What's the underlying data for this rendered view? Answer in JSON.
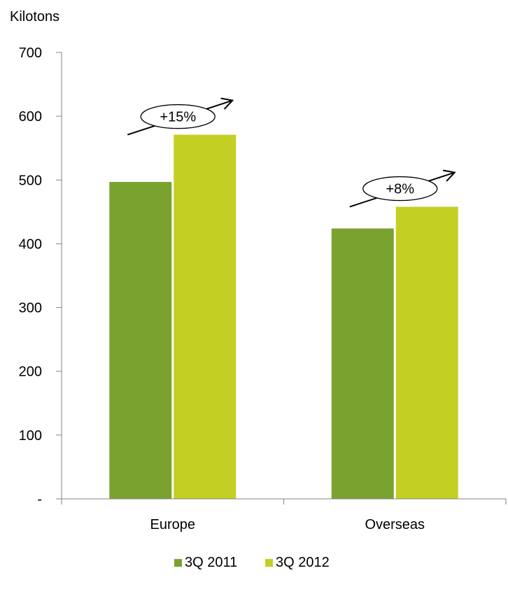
{
  "chart_data": {
    "type": "bar",
    "ylabel": "Kilotons",
    "categories": [
      "Europe",
      "Overseas"
    ],
    "series": [
      {
        "name": "3Q 2011",
        "values": [
          497,
          424
        ],
        "color": "#7aa22f"
      },
      {
        "name": "3Q 2012",
        "values": [
          571,
          458
        ],
        "color": "#c4cf24"
      }
    ],
    "ylim": [
      0,
      700
    ],
    "yticks": [
      0,
      100,
      200,
      300,
      400,
      500,
      600,
      700
    ],
    "ytick_labels": [
      "-",
      "100",
      "200",
      "300",
      "400",
      "500",
      "600",
      "700"
    ],
    "annotations": [
      {
        "category": "Europe",
        "text": "+15%"
      },
      {
        "category": "Overseas",
        "text": "+8%"
      }
    ],
    "legend": "bottom",
    "grid": false
  }
}
